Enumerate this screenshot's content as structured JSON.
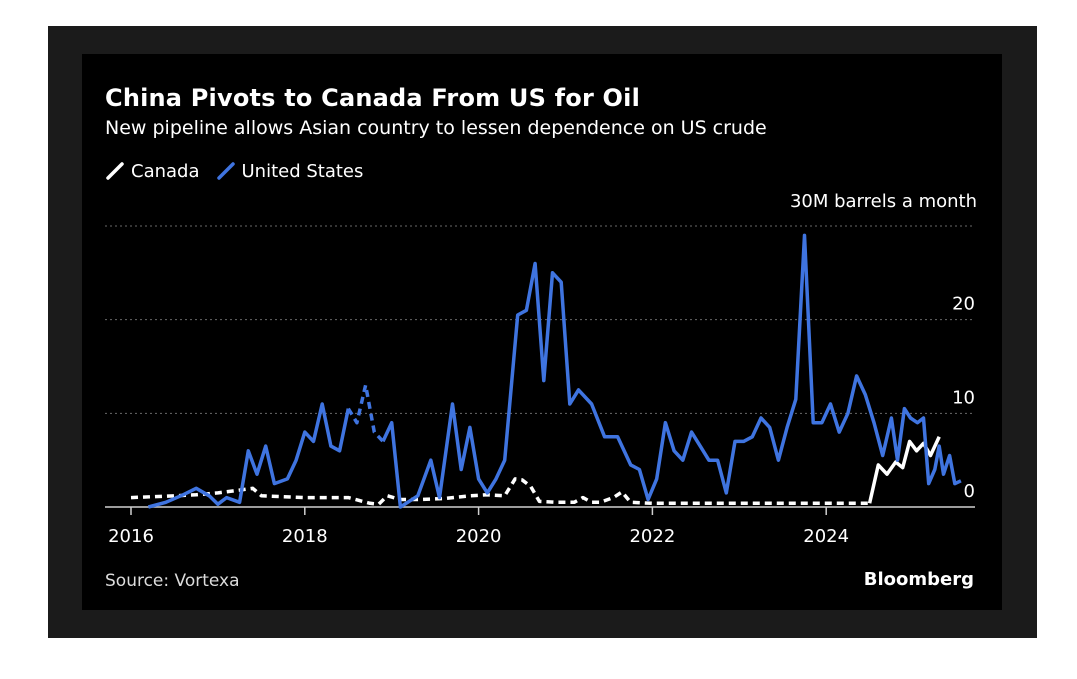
{
  "header": {
    "title": "China Pivots to Canada From US for Oil",
    "subtitle": "New pipeline allows Asian country to lessen dependence on US crude"
  },
  "legend": {
    "items": [
      {
        "label": "Canada",
        "color": "#ffffff"
      },
      {
        "label": "United States",
        "color": "#3f74e0"
      }
    ]
  },
  "footer": {
    "source": "Source: Vortexa",
    "brand": "Bloomberg"
  },
  "chart_data": {
    "type": "line",
    "title": "China Pivots to Canada From US for Oil",
    "subtitle": "New pipeline allows Asian country to lessen dependence on US crude",
    "unit_label": "30M barrels a month",
    "xlabel": "",
    "ylabel": "",
    "xlim": [
      2016,
      2026
    ],
    "ylim": [
      0,
      30
    ],
    "x_ticks": [
      {
        "value": 2016,
        "label": "2016"
      },
      {
        "value": 2018,
        "label": "2018"
      },
      {
        "value": 2020,
        "label": "2020"
      },
      {
        "value": 2022,
        "label": "2022"
      },
      {
        "value": 2024,
        "label": "2024"
      }
    ],
    "y_ticks": [
      {
        "value": 0,
        "label": "0"
      },
      {
        "value": 10,
        "label": "10"
      },
      {
        "value": 20,
        "label": "20"
      },
      {
        "value": 30,
        "label": ""
      }
    ],
    "grid": "horizontal-dotted",
    "legend_position": "top-left",
    "series": [
      {
        "name": "Canada",
        "color": "#ffffff",
        "dashed_until": 2024.5,
        "points": [
          [
            2016.0,
            1.0
          ],
          [
            2016.25,
            1.1
          ],
          [
            2016.5,
            1.2
          ],
          [
            2016.75,
            1.3
          ],
          [
            2017.0,
            1.5
          ],
          [
            2017.25,
            1.8
          ],
          [
            2017.4,
            2.0
          ],
          [
            2017.5,
            1.2
          ],
          [
            2017.75,
            1.1
          ],
          [
            2018.0,
            1.0
          ],
          [
            2018.25,
            1.0
          ],
          [
            2018.5,
            1.0
          ],
          [
            2018.75,
            0.4
          ],
          [
            2018.85,
            0.3
          ],
          [
            2018.95,
            1.2
          ],
          [
            2019.1,
            0.8
          ],
          [
            2019.3,
            0.8
          ],
          [
            2019.6,
            0.9
          ],
          [
            2019.9,
            1.2
          ],
          [
            2020.1,
            1.3
          ],
          [
            2020.3,
            1.2
          ],
          [
            2020.42,
            3.0
          ],
          [
            2020.5,
            2.9
          ],
          [
            2020.6,
            2.2
          ],
          [
            2020.7,
            0.6
          ],
          [
            2020.9,
            0.5
          ],
          [
            2021.1,
            0.5
          ],
          [
            2021.2,
            1.0
          ],
          [
            2021.3,
            0.5
          ],
          [
            2021.4,
            0.5
          ],
          [
            2021.55,
            1.0
          ],
          [
            2021.65,
            1.6
          ],
          [
            2021.75,
            0.5
          ],
          [
            2022.0,
            0.4
          ],
          [
            2022.5,
            0.4
          ],
          [
            2023.0,
            0.4
          ],
          [
            2023.5,
            0.4
          ],
          [
            2024.0,
            0.4
          ],
          [
            2024.5,
            0.4
          ],
          [
            2024.6,
            4.5
          ],
          [
            2024.7,
            3.5
          ],
          [
            2024.8,
            4.8
          ],
          [
            2024.88,
            4.2
          ],
          [
            2024.96,
            7.0
          ],
          [
            2025.04,
            6.0
          ],
          [
            2025.12,
            6.8
          ],
          [
            2025.2,
            5.5
          ],
          [
            2025.3,
            7.5
          ]
        ]
      },
      {
        "name": "United States",
        "color": "#3f74e0",
        "dashed_ranges": [
          [
            2018.5,
            2018.95
          ]
        ],
        "points": [
          [
            2016.2,
            0.0
          ],
          [
            2016.4,
            0.5
          ],
          [
            2016.6,
            1.3
          ],
          [
            2016.75,
            2.0
          ],
          [
            2016.9,
            1.2
          ],
          [
            2017.0,
            0.3
          ],
          [
            2017.1,
            1.0
          ],
          [
            2017.25,
            0.5
          ],
          [
            2017.35,
            6.0
          ],
          [
            2017.45,
            3.5
          ],
          [
            2017.55,
            6.5
          ],
          [
            2017.65,
            2.5
          ],
          [
            2017.8,
            3.0
          ],
          [
            2017.9,
            5.0
          ],
          [
            2018.0,
            8.0
          ],
          [
            2018.1,
            7.0
          ],
          [
            2018.2,
            11.0
          ],
          [
            2018.3,
            6.5
          ],
          [
            2018.4,
            6.0
          ],
          [
            2018.5,
            10.5
          ],
          [
            2018.6,
            9.0
          ],
          [
            2018.7,
            13.0
          ],
          [
            2018.8,
            8.0
          ],
          [
            2018.9,
            7.0
          ],
          [
            2019.0,
            9.0
          ],
          [
            2019.1,
            0.0
          ],
          [
            2019.3,
            1.2
          ],
          [
            2019.45,
            5.0
          ],
          [
            2019.55,
            1.0
          ],
          [
            2019.7,
            11.0
          ],
          [
            2019.8,
            4.0
          ],
          [
            2019.9,
            8.5
          ],
          [
            2020.0,
            3.0
          ],
          [
            2020.1,
            1.5
          ],
          [
            2020.2,
            3.0
          ],
          [
            2020.3,
            5.0
          ],
          [
            2020.45,
            20.5
          ],
          [
            2020.55,
            21.0
          ],
          [
            2020.65,
            26.0
          ],
          [
            2020.75,
            13.5
          ],
          [
            2020.85,
            25.0
          ],
          [
            2020.95,
            24.0
          ],
          [
            2021.05,
            11.0
          ],
          [
            2021.15,
            12.5
          ],
          [
            2021.3,
            11.0
          ],
          [
            2021.45,
            7.5
          ],
          [
            2021.6,
            7.5
          ],
          [
            2021.75,
            4.5
          ],
          [
            2021.85,
            4.0
          ],
          [
            2021.95,
            0.8
          ],
          [
            2022.05,
            3.0
          ],
          [
            2022.15,
            9.0
          ],
          [
            2022.25,
            6.0
          ],
          [
            2022.35,
            5.0
          ],
          [
            2022.45,
            8.0
          ],
          [
            2022.55,
            6.5
          ],
          [
            2022.65,
            5.0
          ],
          [
            2022.75,
            5.0
          ],
          [
            2022.85,
            1.5
          ],
          [
            2022.95,
            7.0
          ],
          [
            2023.05,
            7.0
          ],
          [
            2023.15,
            7.5
          ],
          [
            2023.25,
            9.5
          ],
          [
            2023.35,
            8.5
          ],
          [
            2023.45,
            5.0
          ],
          [
            2023.55,
            8.5
          ],
          [
            2023.65,
            11.5
          ],
          [
            2023.75,
            29.0
          ],
          [
            2023.85,
            9.0
          ],
          [
            2023.95,
            9.0
          ],
          [
            2024.05,
            11.0
          ],
          [
            2024.15,
            8.0
          ],
          [
            2024.25,
            10.0
          ],
          [
            2024.35,
            14.0
          ],
          [
            2024.45,
            12.0
          ],
          [
            2024.55,
            9.0
          ],
          [
            2024.65,
            5.5
          ],
          [
            2024.75,
            9.5
          ],
          [
            2024.82,
            5.0
          ],
          [
            2024.9,
            10.5
          ],
          [
            2024.97,
            9.5
          ],
          [
            2025.05,
            9.0
          ],
          [
            2025.12,
            9.5
          ],
          [
            2025.18,
            2.5
          ],
          [
            2025.25,
            4.0
          ],
          [
            2025.3,
            6.5
          ],
          [
            2025.35,
            3.5
          ],
          [
            2025.42,
            5.5
          ],
          [
            2025.48,
            2.5
          ],
          [
            2025.55,
            2.8
          ]
        ]
      }
    ]
  }
}
